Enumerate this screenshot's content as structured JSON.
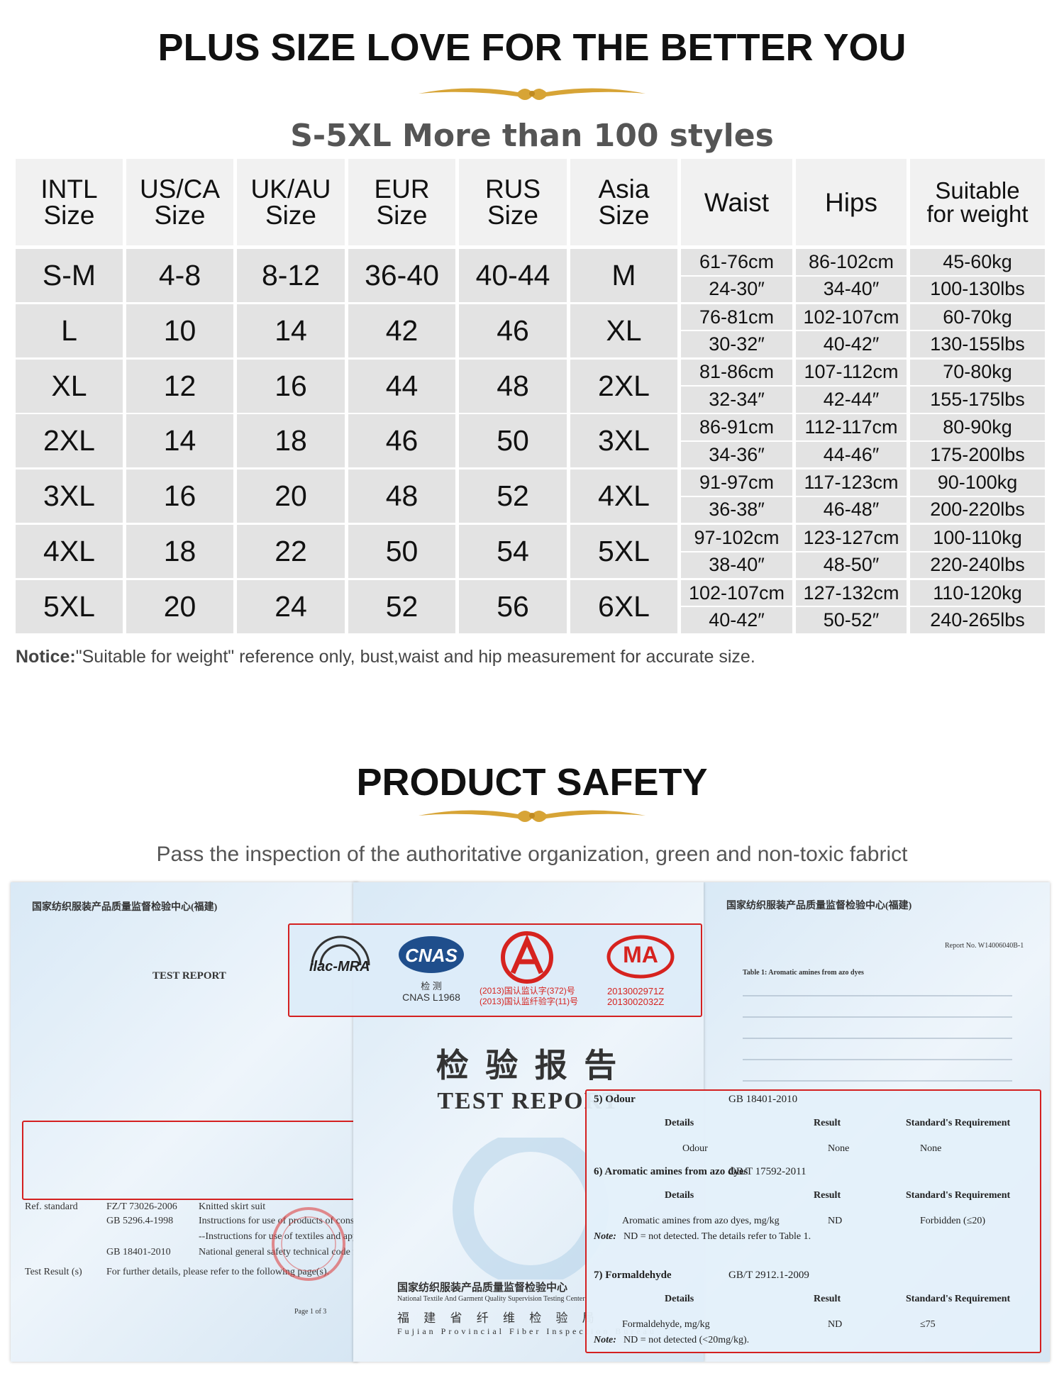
{
  "header": {
    "title": "PLUS SIZE LOVE FOR THE BETTER YOU",
    "subtitle": "S-5XL More than 100 styles"
  },
  "size_table": {
    "columns": [
      "INTL\nSize",
      "US/CA\nSize",
      "UK/AU\nSize",
      "EUR\nSize",
      "RUS\nSize",
      "Asia\nSize",
      "Waist",
      "Hips",
      "Suitable\nfor weight"
    ],
    "rows": [
      {
        "intl": "S-M",
        "us_ca": "4-8",
        "uk_au": "8-12",
        "eur": "36-40",
        "rus": "40-44",
        "asia": "M",
        "waist": [
          "61-76cm",
          "24-30″"
        ],
        "hips": [
          "86-102cm",
          "34-40″"
        ],
        "weight": [
          "45-60kg",
          "100-130lbs"
        ]
      },
      {
        "intl": "L",
        "us_ca": "10",
        "uk_au": "14",
        "eur": "42",
        "rus": "46",
        "asia": "XL",
        "waist": [
          "76-81cm",
          "30-32″"
        ],
        "hips": [
          "102-107cm",
          "40-42″"
        ],
        "weight": [
          "60-70kg",
          "130-155lbs"
        ]
      },
      {
        "intl": "XL",
        "us_ca": "12",
        "uk_au": "16",
        "eur": "44",
        "rus": "48",
        "asia": "2XL",
        "waist": [
          "81-86cm",
          "32-34″"
        ],
        "hips": [
          "107-112cm",
          "42-44″"
        ],
        "weight": [
          "70-80kg",
          "155-175lbs"
        ]
      },
      {
        "intl": "2XL",
        "us_ca": "14",
        "uk_au": "18",
        "eur": "46",
        "rus": "50",
        "asia": "3XL",
        "waist": [
          "86-91cm",
          "34-36″"
        ],
        "hips": [
          "112-117cm",
          "44-46″"
        ],
        "weight": [
          "80-90kg",
          "175-200lbs"
        ]
      },
      {
        "intl": "3XL",
        "us_ca": "16",
        "uk_au": "20",
        "eur": "48",
        "rus": "52",
        "asia": "4XL",
        "waist": [
          "91-97cm",
          "36-38″"
        ],
        "hips": [
          "117-123cm",
          "46-48″"
        ],
        "weight": [
          "90-100kg",
          "200-220lbs"
        ]
      },
      {
        "intl": "4XL",
        "us_ca": "18",
        "uk_au": "22",
        "eur": "50",
        "rus": "54",
        "asia": "5XL",
        "waist": [
          "97-102cm",
          "38-40″"
        ],
        "hips": [
          "123-127cm",
          "48-50″"
        ],
        "weight": [
          "100-110kg",
          "220-240lbs"
        ]
      },
      {
        "intl": "5XL",
        "us_ca": "20",
        "uk_au": "24",
        "eur": "52",
        "rus": "56",
        "asia": "6XL",
        "waist": [
          "102-107cm",
          "40-42″"
        ],
        "hips": [
          "127-132cm",
          "50-52″"
        ],
        "weight": [
          "110-120kg",
          "240-265lbs"
        ]
      }
    ]
  },
  "notice": {
    "label": "Notice:",
    "text": "\"Suitable for weight\" reference only, bust,waist and hip measurement for accurate size."
  },
  "safety": {
    "title": "PRODUCT SAFETY",
    "subtitle": "Pass  the inspection of the authoritative organization, green and non-toxic fabrict"
  },
  "certificates": {
    "left": {
      "org": "国家纺织服装产品质量监督检验中心(福建)",
      "title": "TEST REPORT",
      "ref_label": "Ref. standard",
      "standards": [
        {
          "code": "FZ/T 73026-2006",
          "desc": "Knitted skirt suit"
        },
        {
          "code": "GB 5296.4-1998",
          "desc": "Instructions for use of products of consumer interest"
        },
        {
          "code": "",
          "desc": "--Instructions for use of textiles and apparel"
        },
        {
          "code": "GB 18401-2010",
          "desc": "National general safety technical code for textile products"
        }
      ],
      "result_label": "Test Result (s)",
      "result_text": "For further details, please refer to the following page(s).",
      "page": "Page 1 of 3"
    },
    "middle": {
      "logos": {
        "ilac": "ilac-MRA",
        "cnas": "CNAS",
        "cnas_sub": "检 测",
        "cnas_no": "CNAS L1968",
        "cal_lines": [
          "(2013)国认监认字(372)号",
          "(2013)国认监纤验字(11)号"
        ],
        "ma": "MA",
        "ma_lines": [
          "2013002971Z",
          "2013002032Z"
        ]
      },
      "title_cn": "检 验 报 告",
      "title_en": "TEST REPORT",
      "org_cn": "国家纺织服装产品质量监督检验中心",
      "org_en": "National Textile And Garment Quality Supervision Testing Center",
      "bureau_cn": "福 建 省 纤 维 检 验 局",
      "bureau_en": "Fujian Provincial Fiber Inspection Bureau"
    },
    "right": {
      "org": "国家纺织服装产品质量监督检验中心(福建)",
      "report_no": "Report No. W14006040B-1",
      "table_title": "Table 1:  Aromatic amines from azo dyes",
      "sections": [
        {
          "heading": "5) Odour",
          "standard": "GB 18401-2010",
          "columns": [
            "Details",
            "Result",
            "Standard's Requirement"
          ],
          "row": [
            "Odour",
            "None",
            "None"
          ],
          "note_label": "",
          "note": ""
        },
        {
          "heading": "6) Aromatic amines from azo dyes",
          "standard": "GB/T 17592-2011",
          "columns": [
            "Details",
            "Result",
            "Standard's Requirement"
          ],
          "row": [
            "Aromatic amines from azo dyes, mg/kg",
            "ND",
            "Forbidden (≤20)"
          ],
          "note_label": "Note:",
          "note": "ND = not detected. The details refer to Table 1."
        },
        {
          "heading": "7) Formaldehyde",
          "standard": "GB/T 2912.1-2009",
          "columns": [
            "Details",
            "Result",
            "Standard's Requirement"
          ],
          "row": [
            "Formaldehyde, mg/kg",
            "ND",
            "≤75"
          ],
          "note_label": "Note:",
          "note": "ND = not detected (<20mg/kg)."
        }
      ]
    }
  }
}
